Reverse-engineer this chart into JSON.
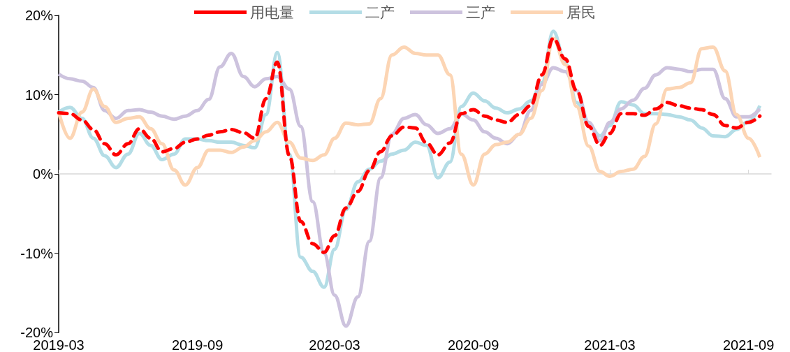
{
  "chart_data": {
    "type": "line",
    "marker": "none",
    "legend": "top",
    "x": [
      "2019-03-01",
      "2019-03-16",
      "2019-04-01",
      "2019-04-16",
      "2019-05-01",
      "2019-05-16",
      "2019-06-01",
      "2019-06-16",
      "2019-07-01",
      "2019-07-16",
      "2019-08-01",
      "2019-08-16",
      "2019-09-01",
      "2019-09-16",
      "2019-10-01",
      "2019-10-16",
      "2019-11-01",
      "2019-11-16",
      "2019-12-01",
      "2019-12-16",
      "2020-01-01",
      "2020-01-16",
      "2020-02-01",
      "2020-02-16",
      "2020-03-01",
      "2020-03-16",
      "2020-04-01",
      "2020-04-16",
      "2020-05-01",
      "2020-05-16",
      "2020-06-01",
      "2020-06-16",
      "2020-07-01",
      "2020-07-16",
      "2020-08-01",
      "2020-08-16",
      "2020-09-01",
      "2020-09-16",
      "2020-10-01",
      "2020-10-16",
      "2020-11-01",
      "2020-11-16",
      "2020-12-01",
      "2020-12-16",
      "2021-01-01",
      "2021-01-16",
      "2021-02-01",
      "2021-02-16",
      "2021-03-01",
      "2021-03-16",
      "2021-04-01",
      "2021-04-16",
      "2021-05-01",
      "2021-05-16",
      "2021-06-01",
      "2021-06-16",
      "2021-07-01",
      "2021-07-16",
      "2021-08-01",
      "2021-08-16",
      "2021-09-01",
      "2021-09-16"
    ],
    "xlim": [
      "2019-03",
      "2021-10"
    ],
    "xticks": [
      "2019-03",
      "2019-09",
      "2020-03",
      "2020-09",
      "2021-03",
      "2021-09"
    ],
    "ylim": [
      -20,
      20
    ],
    "yticks": [
      {
        "value": -20,
        "label": "-20%"
      },
      {
        "value": -10,
        "label": "-10%"
      },
      {
        "value": 0,
        "label": "0%"
      },
      {
        "value": 10,
        "label": "10%"
      },
      {
        "value": 20,
        "label": "20%"
      }
    ],
    "series": [
      {
        "name": "用电量",
        "color": "#ff0000",
        "line_style": "dashed",
        "values": [
          7.7,
          7.6,
          6.8,
          5.6,
          3.8,
          2.4,
          3.8,
          5.7,
          4.5,
          2.8,
          3.2,
          4.0,
          4.4,
          4.9,
          5.3,
          5.6,
          5.2,
          4.5,
          9.5,
          14.1,
          2.3,
          -6.0,
          -8.8,
          -9.9,
          -7.8,
          -4.3,
          -2.2,
          0.4,
          2.8,
          4.8,
          5.9,
          5.8,
          3.9,
          2.4,
          3.9,
          7.6,
          8.1,
          7.3,
          6.8,
          6.5,
          7.5,
          8.6,
          12.5,
          17.1,
          14.5,
          10.5,
          6.0,
          3.6,
          5.1,
          7.6,
          7.6,
          7.4,
          8.2,
          9.0,
          8.6,
          8.3,
          8.1,
          7.5,
          6.1,
          5.8,
          6.5,
          7.3
        ]
      },
      {
        "name": "二产",
        "color": "#b4dde6",
        "line_style": "solid",
        "values": [
          7.8,
          8.4,
          7.0,
          4.5,
          2.3,
          0.8,
          2.5,
          5.1,
          3.6,
          1.8,
          2.5,
          4.4,
          4.4,
          4.2,
          4.0,
          4.0,
          3.6,
          3.3,
          7.5,
          15.3,
          2.5,
          -10.5,
          -12.3,
          -14.3,
          -9.5,
          -4.5,
          -1.0,
          0.6,
          1.6,
          2.5,
          3.0,
          4.0,
          3.6,
          -0.5,
          1.5,
          8.5,
          10.2,
          9.2,
          8.3,
          7.7,
          8.2,
          9.2,
          11.5,
          18.0,
          14.0,
          9.0,
          6.3,
          4.8,
          6.1,
          9.1,
          8.7,
          7.6,
          7.6,
          7.5,
          7.2,
          6.8,
          5.8,
          4.8,
          4.7,
          5.6,
          6.6,
          8.6
        ]
      },
      {
        "name": "三产",
        "color": "#cdc3de",
        "line_style": "solid",
        "values": [
          12.6,
          12.0,
          11.7,
          10.9,
          8.0,
          7.0,
          8.0,
          8.1,
          7.8,
          7.3,
          6.9,
          7.3,
          8.0,
          9.4,
          13.5,
          15.2,
          12.3,
          11.0,
          12.0,
          12.3,
          10.7,
          6.0,
          -3.5,
          -10.0,
          -15.3,
          -19.2,
          -15.5,
          -8.5,
          -0.5,
          5.0,
          7.0,
          7.5,
          6.2,
          5.1,
          5.7,
          7.6,
          6.8,
          5.3,
          4.5,
          3.8,
          5.0,
          8.0,
          11.3,
          13.4,
          12.9,
          10.5,
          6.5,
          4.2,
          6.5,
          8.2,
          9.3,
          10.8,
          12.5,
          13.4,
          13.2,
          12.9,
          13.2,
          13.2,
          9.5,
          7.2,
          7.2,
          8.2
        ]
      },
      {
        "name": "居民",
        "color": "#fcd5b4",
        "line_style": "solid",
        "values": [
          7.8,
          4.5,
          7.8,
          10.7,
          8.5,
          6.5,
          7.0,
          7.2,
          5.7,
          3.8,
          0.5,
          -1.4,
          0.8,
          3.0,
          3.0,
          2.7,
          3.4,
          4.2,
          5.3,
          6.5,
          4.0,
          2.0,
          1.7,
          2.4,
          4.5,
          6.4,
          6.2,
          6.3,
          9.5,
          15.0,
          16.0,
          15.2,
          15.0,
          15.0,
          12.5,
          2.5,
          -1.4,
          2.5,
          3.7,
          4.0,
          5.0,
          7.0,
          10.5,
          17.1,
          13.8,
          8.5,
          3.5,
          0.3,
          -0.3,
          0.3,
          0.6,
          2.2,
          6.3,
          10.7,
          10.9,
          11.5,
          15.8,
          16.0,
          13.0,
          7.5,
          4.5,
          2.1
        ]
      }
    ]
  }
}
